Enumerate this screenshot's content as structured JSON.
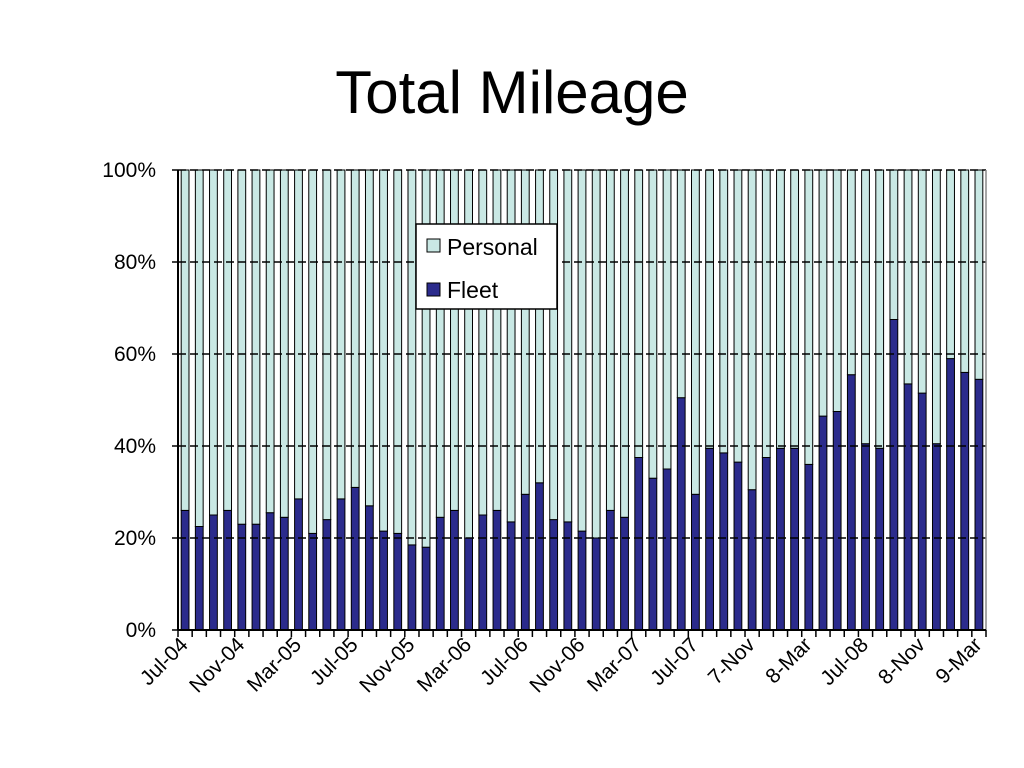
{
  "chart_data": {
    "type": "bar",
    "stacked": true,
    "percent": true,
    "title": "Total Mileage",
    "xlabel": "",
    "ylabel": "",
    "ylim": [
      0,
      100
    ],
    "yticks": [
      "0%",
      "20%",
      "40%",
      "60%",
      "80%",
      "100%"
    ],
    "xtick_labels": [
      "Jul-04",
      "Nov-04",
      "Mar-05",
      "Jul-05",
      "Nov-05",
      "Mar-06",
      "Jul-06",
      "Nov-06",
      "Mar-07",
      "Jul-07",
      "7-Nov",
      "8-Mar",
      "Jul-08",
      "8-Nov",
      "9-Mar"
    ],
    "grid": true,
    "legend_position": "top-center",
    "series": [
      {
        "name": "Fleet",
        "color": "#2b2b8c",
        "values": [
          26,
          22.5,
          25,
          26,
          23,
          23,
          25.5,
          24.5,
          28.5,
          21,
          24,
          28.5,
          31,
          27,
          21.5,
          21,
          18.5,
          18,
          24.5,
          26,
          20,
          25,
          26,
          23.5,
          29.5,
          32,
          24,
          23.5,
          21.5,
          20,
          26,
          24.5,
          37.5,
          33,
          35,
          50.5,
          29.5,
          39.5,
          38.5,
          36.5,
          30.5,
          37.5,
          39.5,
          39.5,
          36,
          46.5,
          47.5,
          55.5,
          40.5,
          39.5,
          67.5,
          53.5,
          51.5,
          40.5,
          59,
          56,
          54.5
        ]
      },
      {
        "name": "Personal",
        "color": "#c9e8e4",
        "values": [
          74,
          77.5,
          75,
          74,
          77,
          77,
          74.5,
          75.5,
          71.5,
          79,
          76,
          71.5,
          69,
          73,
          78.5,
          79,
          81.5,
          82,
          75.5,
          74,
          80,
          75,
          74,
          76.5,
          70.5,
          68,
          76,
          76.5,
          78.5,
          80,
          74,
          75.5,
          62.5,
          67,
          65,
          49.5,
          70.5,
          60.5,
          61.5,
          63.5,
          69.5,
          62.5,
          60.5,
          60.5,
          64,
          53.5,
          52.5,
          44.5,
          59.5,
          60.5,
          32.5,
          46.5,
          48.5,
          59.5,
          41,
          44,
          45.5
        ]
      }
    ]
  }
}
